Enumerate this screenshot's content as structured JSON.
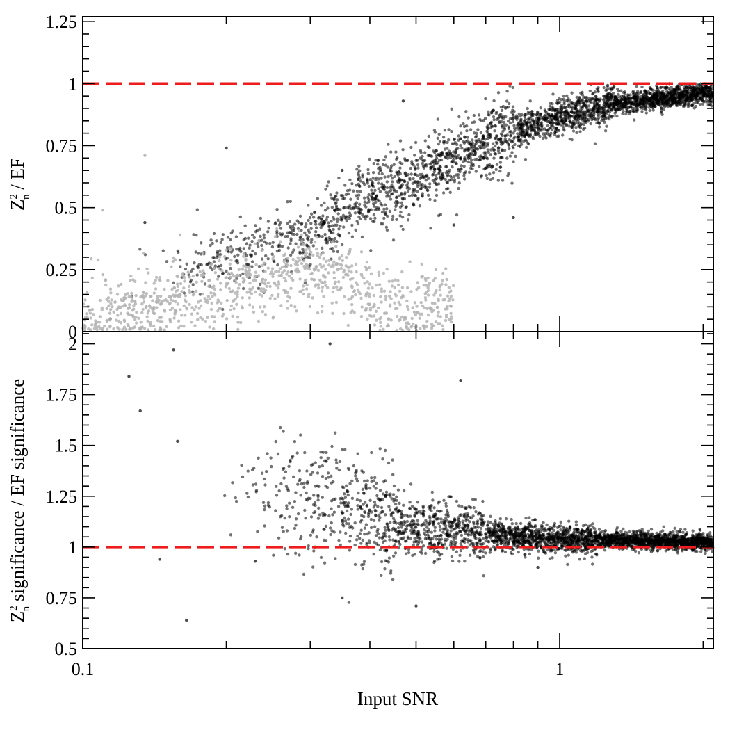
{
  "chart_data": [
    {
      "type": "scatter",
      "panel": "top",
      "title": "",
      "xlabel": "",
      "ylabel": {
        "base": "Z",
        "sup": "2",
        "sub": "n",
        "rest": " / EF"
      },
      "xscale": "log",
      "xlim": [
        0.1,
        2.1
      ],
      "ylim": [
        0,
        1.27
      ],
      "yticks": [
        0,
        0.25,
        0.5,
        0.75,
        1,
        1.25
      ],
      "ytick_labels": [
        "0",
        "0.25",
        "0.5",
        "0.75",
        "1",
        "1.25"
      ],
      "reference_line": {
        "y": 1,
        "style": "dashed",
        "color": "#ee1c1c"
      },
      "series": [
        {
          "color": "#000000",
          "trend": [
            [
              0.1,
              0.19
            ],
            [
              0.2,
              0.3
            ],
            [
              0.3,
              0.4
            ],
            [
              0.4,
              0.55
            ],
            [
              0.5,
              0.62
            ],
            [
              0.6,
              0.69
            ],
            [
              0.7,
              0.76
            ],
            [
              0.8,
              0.81
            ],
            [
              1.0,
              0.87
            ],
            [
              1.3,
              0.92
            ],
            [
              1.6,
              0.94
            ],
            [
              2.1,
              0.965
            ]
          ],
          "points_sample": [
            [
              0.2,
              0.74
            ],
            [
              0.47,
              0.93
            ],
            [
              0.135,
              0.44
            ],
            [
              0.8,
              0.46
            ],
            [
              0.6,
              0.43
            ],
            [
              0.35,
              0.65
            ],
            [
              1.3,
              0.99
            ],
            [
              1.7,
              1.0
            ]
          ]
        },
        {
          "color": "#b4b4b4",
          "trend": [
            [
              0.1,
              0.05
            ],
            [
              0.15,
              0.12
            ],
            [
              0.2,
              0.17
            ],
            [
              0.25,
              0.22
            ],
            [
              0.3,
              0.24
            ],
            [
              0.35,
              0.21
            ],
            [
              0.4,
              0.14
            ],
            [
              0.45,
              0.1
            ]
          ],
          "points_sample": [
            [
              0.135,
              0.71
            ],
            [
              0.11,
              0.49
            ],
            [
              0.58,
              0.21
            ],
            [
              0.55,
              0.25
            ],
            [
              0.16,
              0.39
            ]
          ]
        }
      ]
    },
    {
      "type": "scatter",
      "panel": "bottom",
      "title": "",
      "xlabel": "Input SNR",
      "ylabel": {
        "base": "Z",
        "sup": "2",
        "sub": "n",
        "rest": " significance / EF significance"
      },
      "xscale": "log",
      "xlim": [
        0.1,
        2.1
      ],
      "ylim": [
        0.5,
        2.06
      ],
      "xticks": [
        0.1,
        1
      ],
      "xtick_labels": [
        "0.1",
        "1"
      ],
      "yticks": [
        0.5,
        0.75,
        1,
        1.25,
        1.5,
        1.75,
        2
      ],
      "ytick_labels": [
        "0.5",
        "0.75",
        "1",
        "1.25",
        "1.5",
        "1.75",
        "2"
      ],
      "reference_line": {
        "y": 1,
        "style": "dashed",
        "color": "#ee1c1c"
      },
      "series": [
        {
          "color": "#000000",
          "trend": [
            [
              0.2,
              1.3
            ],
            [
              0.3,
              1.25
            ],
            [
              0.35,
              1.22
            ],
            [
              0.4,
              1.15
            ],
            [
              0.5,
              1.1
            ],
            [
              0.6,
              1.08
            ],
            [
              0.8,
              1.05
            ],
            [
              1.0,
              1.04
            ],
            [
              1.5,
              1.03
            ],
            [
              2.1,
              1.025
            ]
          ],
          "points_sample": [
            [
              0.125,
              1.84
            ],
            [
              0.132,
              1.67
            ],
            [
              0.155,
              1.97
            ],
            [
              0.165,
              0.64
            ],
            [
              0.158,
              1.52
            ],
            [
              0.145,
              0.94
            ],
            [
              0.33,
              2.0
            ],
            [
              0.5,
              0.71
            ],
            [
              0.62,
              1.82
            ],
            [
              0.35,
              0.75
            ],
            [
              0.23,
              0.93
            ],
            [
              0.9,
              0.9
            ]
          ]
        }
      ]
    }
  ]
}
